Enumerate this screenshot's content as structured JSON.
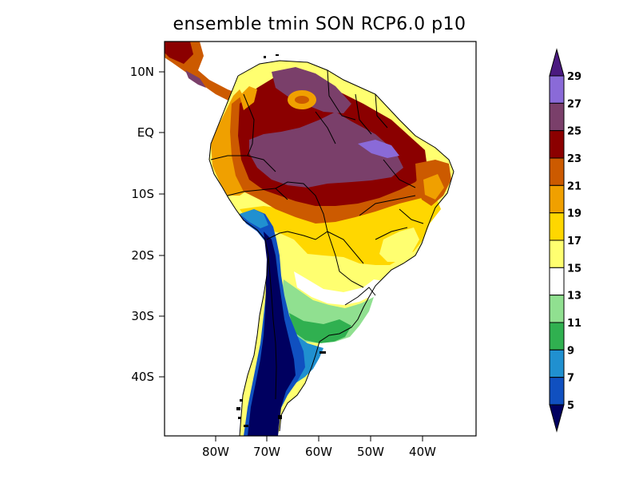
{
  "title": "ensemble tmin SON RCP6.0 p10",
  "map": {
    "lat_labels": [
      "10N",
      "EQ",
      "10S",
      "20S",
      "30S",
      "40S"
    ],
    "lon_labels": [
      "80W",
      "70W",
      "60W",
      "50W",
      "40W"
    ],
    "region": "South America"
  },
  "colorbar": {
    "labels": [
      "29",
      "27",
      "25",
      "23",
      "21",
      "19",
      "17",
      "15",
      "13",
      "11",
      "9",
      "7",
      "5"
    ],
    "colors": [
      "#8a6ad8",
      "#7a3f6a",
      "#8b0000",
      "#cc5a00",
      "#f0a000",
      "#ffd700",
      "#ffff70",
      "#ffffff",
      "#90e090",
      "#30b050",
      "#2090d0",
      "#1050c0"
    ],
    "over_color": "#4b1a80",
    "under_color": "#000060"
  }
}
